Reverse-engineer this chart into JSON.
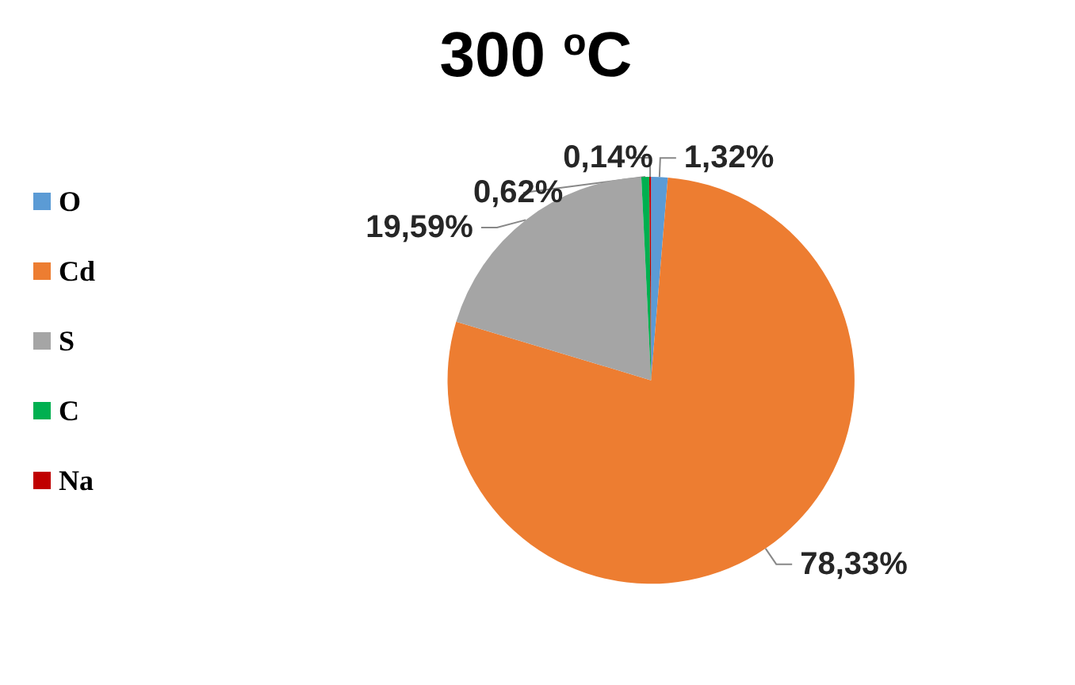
{
  "chart_data": {
    "type": "pie",
    "title": "300 $^{o}$C",
    "categories": [
      "O",
      "Cd",
      "S",
      "C",
      "Na"
    ],
    "values": [
      1.32,
      78.33,
      19.59,
      0.62,
      0.14
    ],
    "colors": [
      "#5b9bd5",
      "#ed7d31",
      "#a5a5a5",
      "#00b050",
      "#c00000"
    ],
    "value_labels": [
      "1,32%",
      "78,33%",
      "19,59%",
      "0,62%",
      "0,14%"
    ],
    "legend": "left"
  }
}
